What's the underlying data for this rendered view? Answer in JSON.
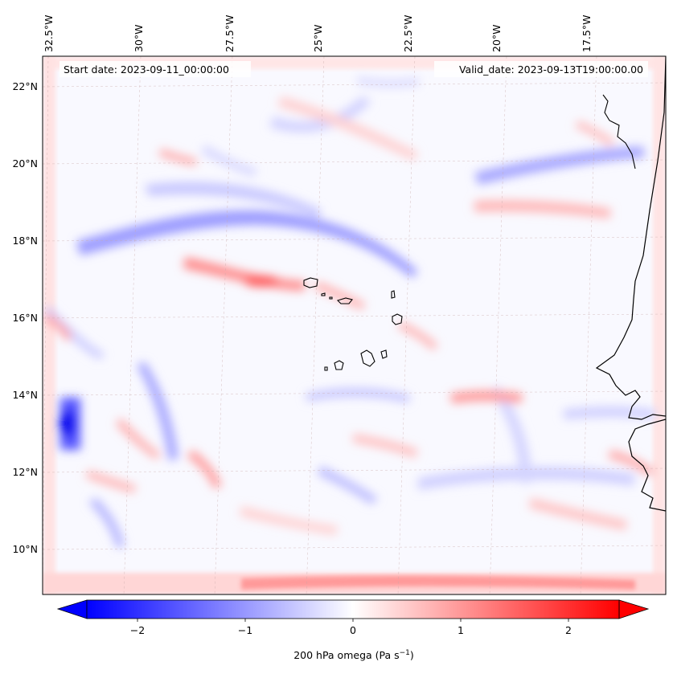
{
  "map": {
    "start_date": "Start date: 2023-09-11_00:00:00",
    "valid_date": "Valid_date: 2023-09-13T19:00:00.00",
    "lon_labels": [
      "32.5°W",
      "30°W",
      "27.5°W",
      "25°W",
      "22.5°W",
      "20°W",
      "17.5°W"
    ],
    "lat_labels": [
      "22°N",
      "20°N",
      "18°N",
      "16°N",
      "14°N",
      "12°N",
      "10°N"
    ],
    "variable": "200 hPa omega",
    "colormap": "bwr",
    "colors": {
      "negative": "#0000ff",
      "zero": "#ffffff",
      "positive": "#ff0000",
      "coastline": "#000000"
    }
  },
  "colorbar": {
    "ticks": [
      "−2",
      "−1",
      "0",
      "1",
      "2"
    ],
    "range": [
      -2.7,
      2.7
    ],
    "label_main": "200 hPa omega (Pa s",
    "label_sup": "−1",
    "label_end": ")"
  }
}
